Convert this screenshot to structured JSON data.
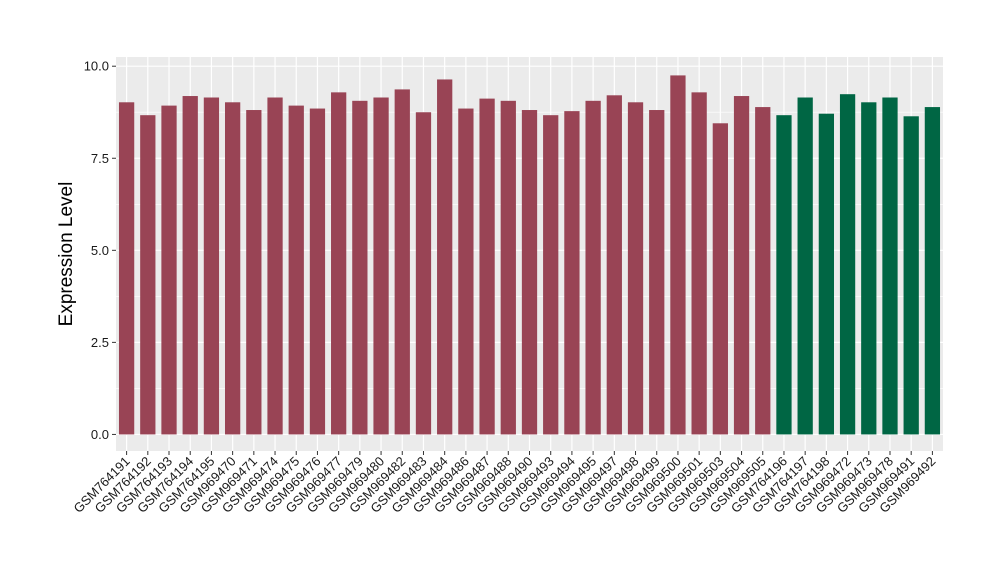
{
  "chart_data": {
    "type": "bar",
    "ylabel": "Expression Level",
    "xlabel": "",
    "ylim": [
      -0.45,
      10.25
    ],
    "yticks": [
      "0.0",
      "2.5",
      "5.0",
      "7.5",
      "10.0"
    ],
    "grid": true,
    "panel_background": "#ebebeb",
    "grid_color": "#ffffff",
    "categories": [
      "GSM764191",
      "GSM764192",
      "GSM764193",
      "GSM764194",
      "GSM764195",
      "GSM969470",
      "GSM969471",
      "GSM969474",
      "GSM969475",
      "GSM969476",
      "GSM969477",
      "GSM969479",
      "GSM969480",
      "GSM969482",
      "GSM969483",
      "GSM969484",
      "GSM969486",
      "GSM969487",
      "GSM969488",
      "GSM969490",
      "GSM969493",
      "GSM969494",
      "GSM969495",
      "GSM969497",
      "GSM969498",
      "GSM969499",
      "GSM969500",
      "GSM969501",
      "GSM969503",
      "GSM969504",
      "GSM969505",
      "GSM764196",
      "GSM764197",
      "GSM764198",
      "GSM969472",
      "GSM969473",
      "GSM969478",
      "GSM969491",
      "GSM969492"
    ],
    "values": [
      9.02,
      8.67,
      8.93,
      9.19,
      9.15,
      9.02,
      8.81,
      9.15,
      8.93,
      8.85,
      9.29,
      9.06,
      9.15,
      9.37,
      8.75,
      9.64,
      8.85,
      9.12,
      9.06,
      8.81,
      8.67,
      8.78,
      9.06,
      9.21,
      9.02,
      8.81,
      9.75,
      9.29,
      8.45,
      9.19,
      8.89,
      8.67,
      9.15,
      8.71,
      9.24,
      9.02,
      9.15,
      8.64,
      8.89
    ],
    "bar_colors": [
      "#994455",
      "#994455",
      "#994455",
      "#994455",
      "#994455",
      "#994455",
      "#994455",
      "#994455",
      "#994455",
      "#994455",
      "#994455",
      "#994455",
      "#994455",
      "#994455",
      "#994455",
      "#994455",
      "#994455",
      "#994455",
      "#994455",
      "#994455",
      "#994455",
      "#994455",
      "#994455",
      "#994455",
      "#994455",
      "#994455",
      "#994455",
      "#994455",
      "#994455",
      "#994455",
      "#994455",
      "#006644",
      "#006644",
      "#006644",
      "#006644",
      "#006644",
      "#006644",
      "#006644",
      "#006644"
    ]
  }
}
